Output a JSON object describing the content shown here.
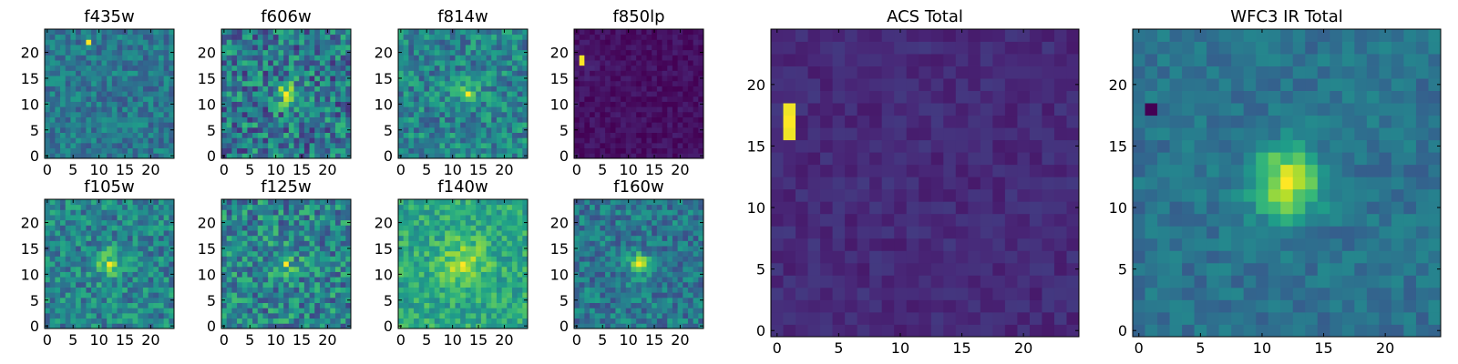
{
  "chart_data": [
    {
      "type": "heatmap",
      "title": "f435w",
      "xticks": [
        "0",
        "5",
        "10",
        "15",
        "20"
      ],
      "yticks": [
        "0",
        "5",
        "10",
        "15",
        "20"
      ],
      "xlim": [
        -0.5,
        24.5
      ],
      "ylim": [
        -0.5,
        24.5
      ],
      "colormap": "viridis",
      "peak": {
        "x": 8,
        "y": 22
      }
    },
    {
      "type": "heatmap",
      "title": "f606w",
      "xticks": [
        "0",
        "5",
        "10",
        "15",
        "20"
      ],
      "yticks": [
        "0",
        "5",
        "10",
        "15",
        "20"
      ],
      "xlim": [
        -0.5,
        24.5
      ],
      "ylim": [
        -0.5,
        24.5
      ],
      "colormap": "viridis",
      "peak": {
        "x": 12,
        "y": 12
      }
    },
    {
      "type": "heatmap",
      "title": "f814w",
      "xticks": [
        "0",
        "5",
        "10",
        "15",
        "20"
      ],
      "yticks": [
        "0",
        "5",
        "10",
        "15",
        "20"
      ],
      "xlim": [
        -0.5,
        24.5
      ],
      "ylim": [
        -0.5,
        24.5
      ],
      "colormap": "viridis",
      "peak": {
        "x": 13,
        "y": 12
      }
    },
    {
      "type": "heatmap",
      "title": "f850lp",
      "xticks": [
        "0",
        "5",
        "10",
        "15",
        "20"
      ],
      "yticks": [
        "0",
        "5",
        "10",
        "15",
        "20"
      ],
      "xlim": [
        -0.5,
        24.5
      ],
      "ylim": [
        -0.5,
        24.5
      ],
      "colormap": "viridis",
      "peak": {
        "x": 1,
        "y": 18
      }
    },
    {
      "type": "heatmap",
      "title": "f105w",
      "xticks": [
        "0",
        "5",
        "10",
        "15",
        "20"
      ],
      "yticks": [
        "0",
        "5",
        "10",
        "15",
        "20"
      ],
      "xlim": [
        -0.5,
        24.5
      ],
      "ylim": [
        -0.5,
        24.5
      ],
      "colormap": "viridis",
      "peak": {
        "x": 12,
        "y": 12
      }
    },
    {
      "type": "heatmap",
      "title": "f125w",
      "xticks": [
        "0",
        "5",
        "10",
        "15",
        "20"
      ],
      "yticks": [
        "0",
        "5",
        "10",
        "15",
        "20"
      ],
      "xlim": [
        -0.5,
        24.5
      ],
      "ylim": [
        -0.5,
        24.5
      ],
      "colormap": "viridis",
      "peak": {
        "x": 12,
        "y": 12
      }
    },
    {
      "type": "heatmap",
      "title": "f140w",
      "xticks": [
        "0",
        "5",
        "10",
        "15",
        "20"
      ],
      "yticks": [
        "0",
        "5",
        "10",
        "15",
        "20"
      ],
      "xlim": [
        -0.5,
        24.5
      ],
      "ylim": [
        -0.5,
        24.5
      ],
      "colormap": "viridis",
      "peak": {
        "x": 12,
        "y": 12
      }
    },
    {
      "type": "heatmap",
      "title": "f160w",
      "xticks": [
        "0",
        "5",
        "10",
        "15",
        "20"
      ],
      "yticks": [
        "0",
        "5",
        "10",
        "15",
        "20"
      ],
      "xlim": [
        -0.5,
        24.5
      ],
      "ylim": [
        -0.5,
        24.5
      ],
      "colormap": "viridis",
      "peak": {
        "x": 12,
        "y": 12
      }
    },
    {
      "type": "heatmap",
      "title": "ACS Total",
      "xticks": [
        "0",
        "5",
        "10",
        "15",
        "20"
      ],
      "yticks": [
        "0",
        "5",
        "10",
        "15",
        "20"
      ],
      "xlim": [
        -0.5,
        24.5
      ],
      "ylim": [
        -0.5,
        24.5
      ],
      "colormap": "viridis",
      "peak": {
        "x": 1,
        "y": 17
      }
    },
    {
      "type": "heatmap",
      "title": "WFC3 IR Total",
      "xticks": [
        "0",
        "5",
        "10",
        "15",
        "20"
      ],
      "yticks": [
        "0",
        "5",
        "10",
        "15",
        "20"
      ],
      "xlim": [
        -0.5,
        24.5
      ],
      "ylim": [
        -0.5,
        24.5
      ],
      "colormap": "viridis",
      "peak": {
        "x": 12,
        "y": 12
      }
    }
  ],
  "colors": {
    "background": "#ffffff",
    "axis": "#000000"
  }
}
